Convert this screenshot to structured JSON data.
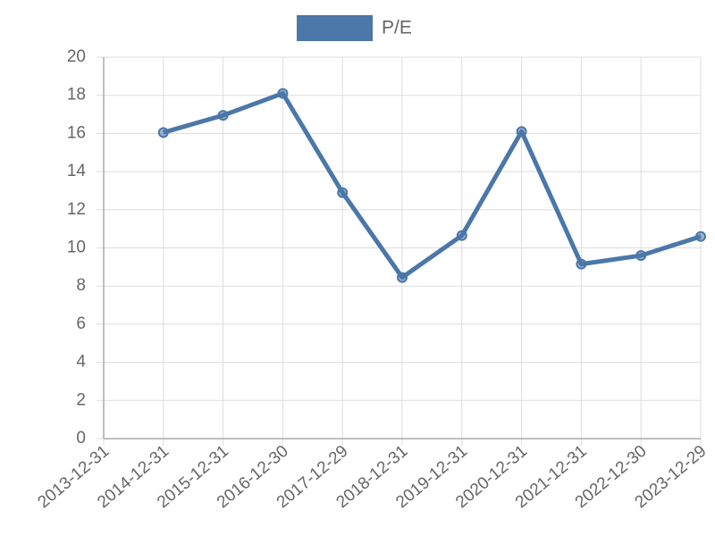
{
  "chart_data": {
    "type": "line",
    "categories": [
      "2013-12-31",
      "2014-12-31",
      "2015-12-31",
      "2016-12-30",
      "2017-12-29",
      "2018-12-31",
      "2019-12-31",
      "2020-12-31",
      "2021-12-31",
      "2022-12-30",
      "2023-12-29"
    ],
    "series": [
      {
        "name": "P/E",
        "color": "#4b77a9",
        "values": [
          null,
          16.05,
          16.95,
          18.1,
          12.9,
          8.45,
          10.65,
          16.1,
          9.15,
          9.6,
          10.6
        ]
      }
    ],
    "ylim": [
      0,
      20
    ],
    "yticks": [
      0,
      2,
      4,
      6,
      8,
      10,
      12,
      14,
      16,
      18,
      20
    ],
    "grid": true,
    "legend": "top"
  }
}
